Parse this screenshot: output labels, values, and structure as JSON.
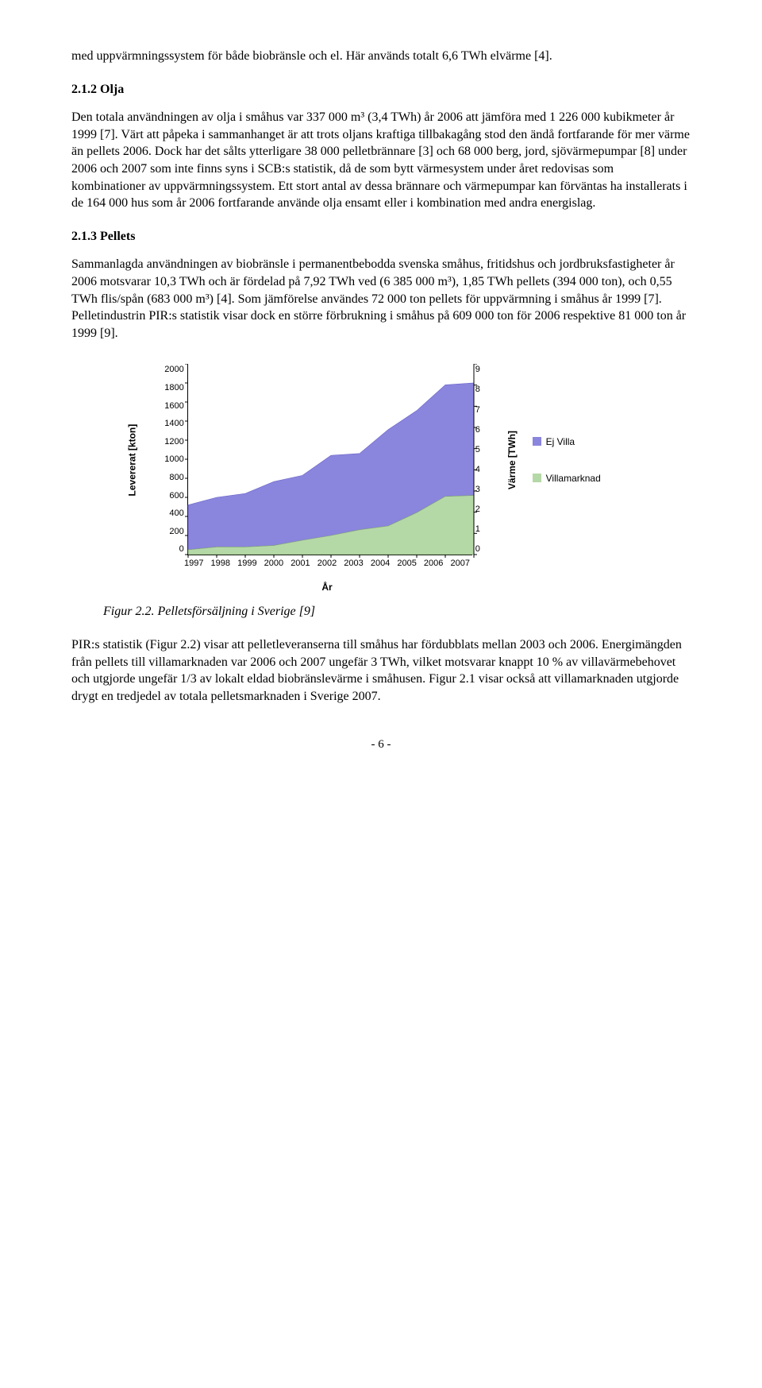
{
  "p1": "med uppvärmningssystem för både biobränsle och el. Här används totalt 6,6 TWh elvärme [4].",
  "h212": "2.1.2   Olja",
  "p2": "Den totala användningen av olja i småhus var 337 000 m³ (3,4 TWh) år 2006 att jämföra med 1 226 000 kubikmeter år 1999 [7]. Värt att påpeka i sammanhanget är att trots oljans kraftiga tillbakagång stod den ändå fortfarande för mer värme än pellets 2006. Dock har det sålts ytterligare 38 000 pelletbrännare [3] och 68 000 berg, jord, sjövärmepumpar [8] under 2006 och 2007 som inte finns syns i SCB:s statistik, då de som bytt värmesystem under året redovisas som kombinationer av uppvärmningssystem. Ett stort antal av dessa brännare och värmepumpar kan förväntas ha installerats i de 164 000 hus som år 2006 fortfarande använde olja ensamt eller i kombination med andra energislag.",
  "h213": "2.1.3   Pellets",
  "p3": "Sammanlagda användningen av biobränsle i permanentbebodda svenska småhus, fritidshus och jordbruksfastigheter år 2006 motsvarar 10,3 TWh och är fördelad på 7,92 TWh ved (6 385 000 m³), 1,85 TWh pellets (394 000 ton), och 0,55 TWh flis/spån (683 000 m³) [4]. Som jämförelse användes 72 000 ton pellets för uppvärmning i småhus år 1999 [7]. Pelletindustrin PIR:s statistik visar dock en större förbrukning i småhus på 609 000 ton för 2006 respektive 81 000 ton år 1999 [9].",
  "caption": "Figur 2.2. Pelletsförsäljning i Sverige [9]",
  "p4": "PIR:s statistik (Figur 2.2) visar att pelletleveranserna till småhus har fördubblats mellan 2003 och 2006. Energimängden från pellets till villamarknaden var 2006 och 2007 ungefär 3 TWh, vilket motsvarar knappt 10 % av villavärmebehovet och utgjorde ungefär 1/3 av lokalt eldad biobränslevärme i småhusen. Figur 2.1 visar också att villamarknaden utgjorde drygt en tredjedel av totala pelletsmarknaden i Sverige 2007.",
  "pagenum": "- 6 -",
  "chart": {
    "type": "stacked-area",
    "years": [
      "1997",
      "1998",
      "1999",
      "2000",
      "2001",
      "2002",
      "2003",
      "2004",
      "2005",
      "2006",
      "2007"
    ],
    "series": {
      "villa": [
        50,
        80,
        80,
        95,
        150,
        200,
        260,
        300,
        440,
        610,
        620
      ],
      "ejvilla": [
        470,
        520,
        560,
        670,
        680,
        840,
        800,
        1010,
        1070,
        1170,
        1180
      ]
    },
    "ylabel_left": "Levererat [kton]",
    "ylabel_right": "Värme [TWh]",
    "xlabel": "År",
    "left_max": 2000,
    "left_step": 200,
    "right_max": 9,
    "right_step": 1,
    "left_ticks": [
      "2000",
      "1800",
      "1600",
      "1400",
      "1200",
      "1000",
      "800",
      "600",
      "400",
      "200",
      "0"
    ],
    "right_ticks": [
      "9",
      "8",
      "7",
      "6",
      "5",
      "4",
      "3",
      "2",
      "1",
      "0"
    ],
    "colors": {
      "villa": "#b5d8a7",
      "ejvilla": "#8a85dd",
      "plot_bg": "#ffffff",
      "villa_stroke": "#7fa86f",
      "ejvilla_stroke": "#6a64c8"
    },
    "legend": {
      "ejvilla": "Ej Villa",
      "villa": "Villamarknad"
    },
    "font": {
      "family": "Arial",
      "size": 11
    }
  }
}
